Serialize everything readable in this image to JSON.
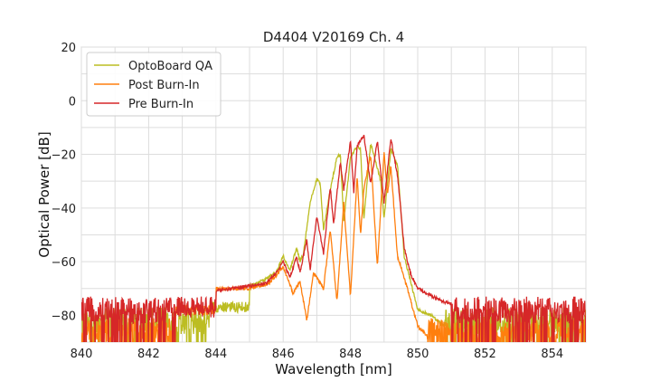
{
  "chart_data": {
    "type": "line",
    "title": "D4404 V20169 Ch. 4",
    "xlabel": "Wavelength [nm]",
    "ylabel": "Optical Power [dB]",
    "xlim": [
      840,
      855
    ],
    "ylim": [
      -90,
      20
    ],
    "xticks": [
      "840",
      "842",
      "844",
      "846",
      "848",
      "850",
      "852",
      "854"
    ],
    "yticks": [
      "20",
      "0",
      "−20",
      "−40",
      "−60",
      "−80"
    ],
    "grid": true,
    "legend_position": "top-left",
    "series": [
      {
        "name": "OptoBoard QA",
        "color": "#bcbd22",
        "noise_floor": -82,
        "x": [
          845.0,
          845.4,
          845.8,
          846.0,
          846.2,
          846.4,
          846.5,
          846.6,
          846.8,
          847.0,
          847.1,
          847.2,
          847.4,
          847.6,
          847.7,
          847.8,
          848.0,
          848.2,
          848.3,
          848.4,
          848.6,
          848.8,
          848.9,
          849.0,
          849.2,
          849.4,
          849.5,
          849.6,
          849.8,
          850.0,
          850.4,
          850.8
        ],
        "y": [
          -69,
          -67,
          -64,
          -58,
          -63,
          -55,
          -60,
          -57,
          -38,
          -29,
          -31,
          -48,
          -33,
          -21,
          -20,
          -45,
          -21,
          -17,
          -18,
          -44,
          -16,
          -25,
          -30,
          -44,
          -18,
          -24,
          -41,
          -58,
          -68,
          -78,
          -80,
          -84
        ]
      },
      {
        "name": "Post Burn-In",
        "color": "#ff7f0e",
        "noise_floor": -86,
        "x": [
          844.0,
          845.0,
          845.6,
          846.0,
          846.3,
          846.5,
          846.7,
          846.9,
          847.2,
          847.4,
          847.6,
          847.8,
          848.0,
          848.2,
          848.3,
          848.4,
          848.6,
          848.8,
          849.0,
          849.1,
          849.2,
          849.4,
          849.6,
          849.8,
          850.0,
          850.3
        ],
        "y": [
          -70,
          -70,
          -68,
          -62,
          -72,
          -67,
          -82,
          -64,
          -70,
          -48,
          -75,
          -38,
          -73,
          -28,
          -50,
          -33,
          -20,
          -62,
          -19,
          -35,
          -24,
          -58,
          -66,
          -75,
          -84,
          -88
        ]
      },
      {
        "name": "Pre Burn-In",
        "color": "#d62728",
        "noise_floor": -78,
        "x": [
          844.0,
          845.0,
          845.5,
          845.8,
          846.0,
          846.2,
          846.4,
          846.5,
          846.7,
          846.8,
          847.0,
          847.2,
          847.4,
          847.5,
          847.7,
          847.8,
          848.0,
          848.1,
          848.2,
          848.4,
          848.6,
          848.8,
          849.0,
          849.2,
          849.4,
          849.6,
          849.8,
          850.0,
          850.3,
          850.6,
          851.0
        ],
        "y": [
          -71,
          -69,
          -68,
          -64,
          -60,
          -66,
          -58,
          -64,
          -52,
          -63,
          -43,
          -57,
          -32,
          -46,
          -23,
          -33,
          -15,
          -34,
          -17,
          -13,
          -31,
          -15,
          -38,
          -14,
          -28,
          -55,
          -65,
          -70,
          -72,
          -74,
          -76
        ]
      }
    ]
  }
}
